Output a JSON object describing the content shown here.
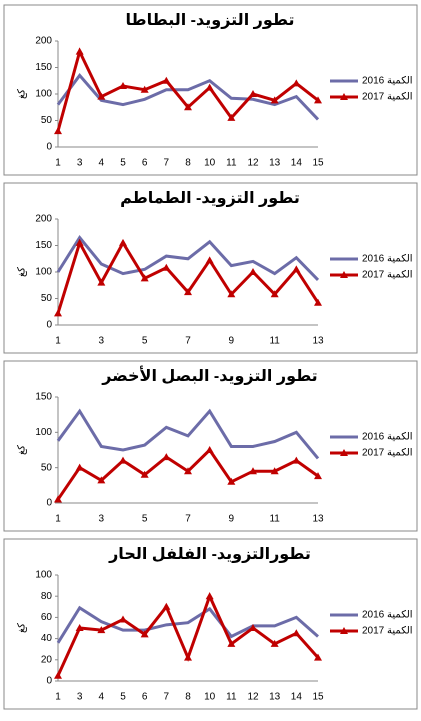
{
  "chart_data": [
    {
      "type": "line",
      "title": "تطور التزويد- البطاطا",
      "y_label": "كغ",
      "categories": [
        "1",
        "3",
        "4",
        "5",
        "6",
        "7",
        "8",
        "10",
        "11",
        "12",
        "13",
        "14",
        "15"
      ],
      "series": [
        {
          "name": "الكمية 2016",
          "color": "#6c6ca8",
          "marker": "none",
          "values": [
            80,
            135,
            88,
            80,
            90,
            108,
            108,
            125,
            92,
            90,
            80,
            95,
            52
          ]
        },
        {
          "name": "الكمية 2017",
          "color": "#c00000",
          "marker": "triangle",
          "values": [
            30,
            180,
            95,
            115,
            108,
            125,
            75,
            112,
            55,
            100,
            88,
            120,
            88
          ]
        }
      ],
      "ylim": [
        0,
        200
      ],
      "yticks": [
        0,
        50,
        100,
        150,
        200
      ]
    },
    {
      "type": "line",
      "title": "تطور التزويد- الطماطم",
      "y_label": "كغ",
      "categories": [
        "1",
        null,
        "3",
        null,
        "5",
        null,
        "7",
        null,
        "9",
        null,
        "11",
        null,
        "13"
      ],
      "series": [
        {
          "name": "الكمية 2016",
          "color": "#6c6ca8",
          "marker": "none",
          "values": [
            100,
            165,
            115,
            97,
            105,
            130,
            125,
            157,
            112,
            120,
            97,
            127,
            85
          ]
        },
        {
          "name": "الكمية 2017",
          "color": "#c00000",
          "marker": "triangle",
          "values": [
            22,
            155,
            80,
            155,
            88,
            108,
            62,
            122,
            58,
            100,
            58,
            105,
            42
          ]
        }
      ],
      "ylim": [
        0,
        200
      ],
      "yticks": [
        0,
        50,
        100,
        150,
        200
      ]
    },
    {
      "type": "line",
      "title": "تطور التزويد- البصل الأخضر",
      "y_label": "كغ",
      "categories": [
        "1",
        null,
        "3",
        null,
        "5",
        null,
        "7",
        null,
        "9",
        null,
        "11",
        null,
        "13"
      ],
      "series": [
        {
          "name": "الكمية 2016",
          "color": "#6c6ca8",
          "marker": "none",
          "values": [
            88,
            130,
            80,
            75,
            82,
            107,
            95,
            130,
            80,
            80,
            87,
            100,
            63
          ]
        },
        {
          "name": "الكمية 2017",
          "color": "#c00000",
          "marker": "triangle",
          "values": [
            5,
            50,
            32,
            60,
            40,
            65,
            45,
            75,
            30,
            45,
            45,
            60,
            38
          ]
        }
      ],
      "ylim": [
        0,
        150
      ],
      "yticks": [
        0,
        50,
        100,
        150
      ]
    },
    {
      "type": "line",
      "title": "تطورالتزويد- الفلفل الحار",
      "y_label": "كغ",
      "categories": [
        "1",
        "3",
        "4",
        "5",
        "6",
        "7",
        "8",
        "10",
        "11",
        "12",
        "13",
        "14",
        "15"
      ],
      "series": [
        {
          "name": "الكمية 2016",
          "color": "#6c6ca8",
          "marker": "none",
          "values": [
            36,
            69,
            56,
            48,
            48,
            53,
            55,
            68,
            42,
            52,
            52,
            60,
            42
          ]
        },
        {
          "name": "الكمية 2017",
          "color": "#c00000",
          "marker": "triangle",
          "values": [
            5,
            50,
            48,
            58,
            44,
            70,
            22,
            80,
            35,
            50,
            35,
            45,
            22
          ]
        }
      ],
      "ylim": [
        0,
        100
      ],
      "yticks": [
        0,
        20,
        40,
        60,
        80,
        100
      ]
    }
  ]
}
